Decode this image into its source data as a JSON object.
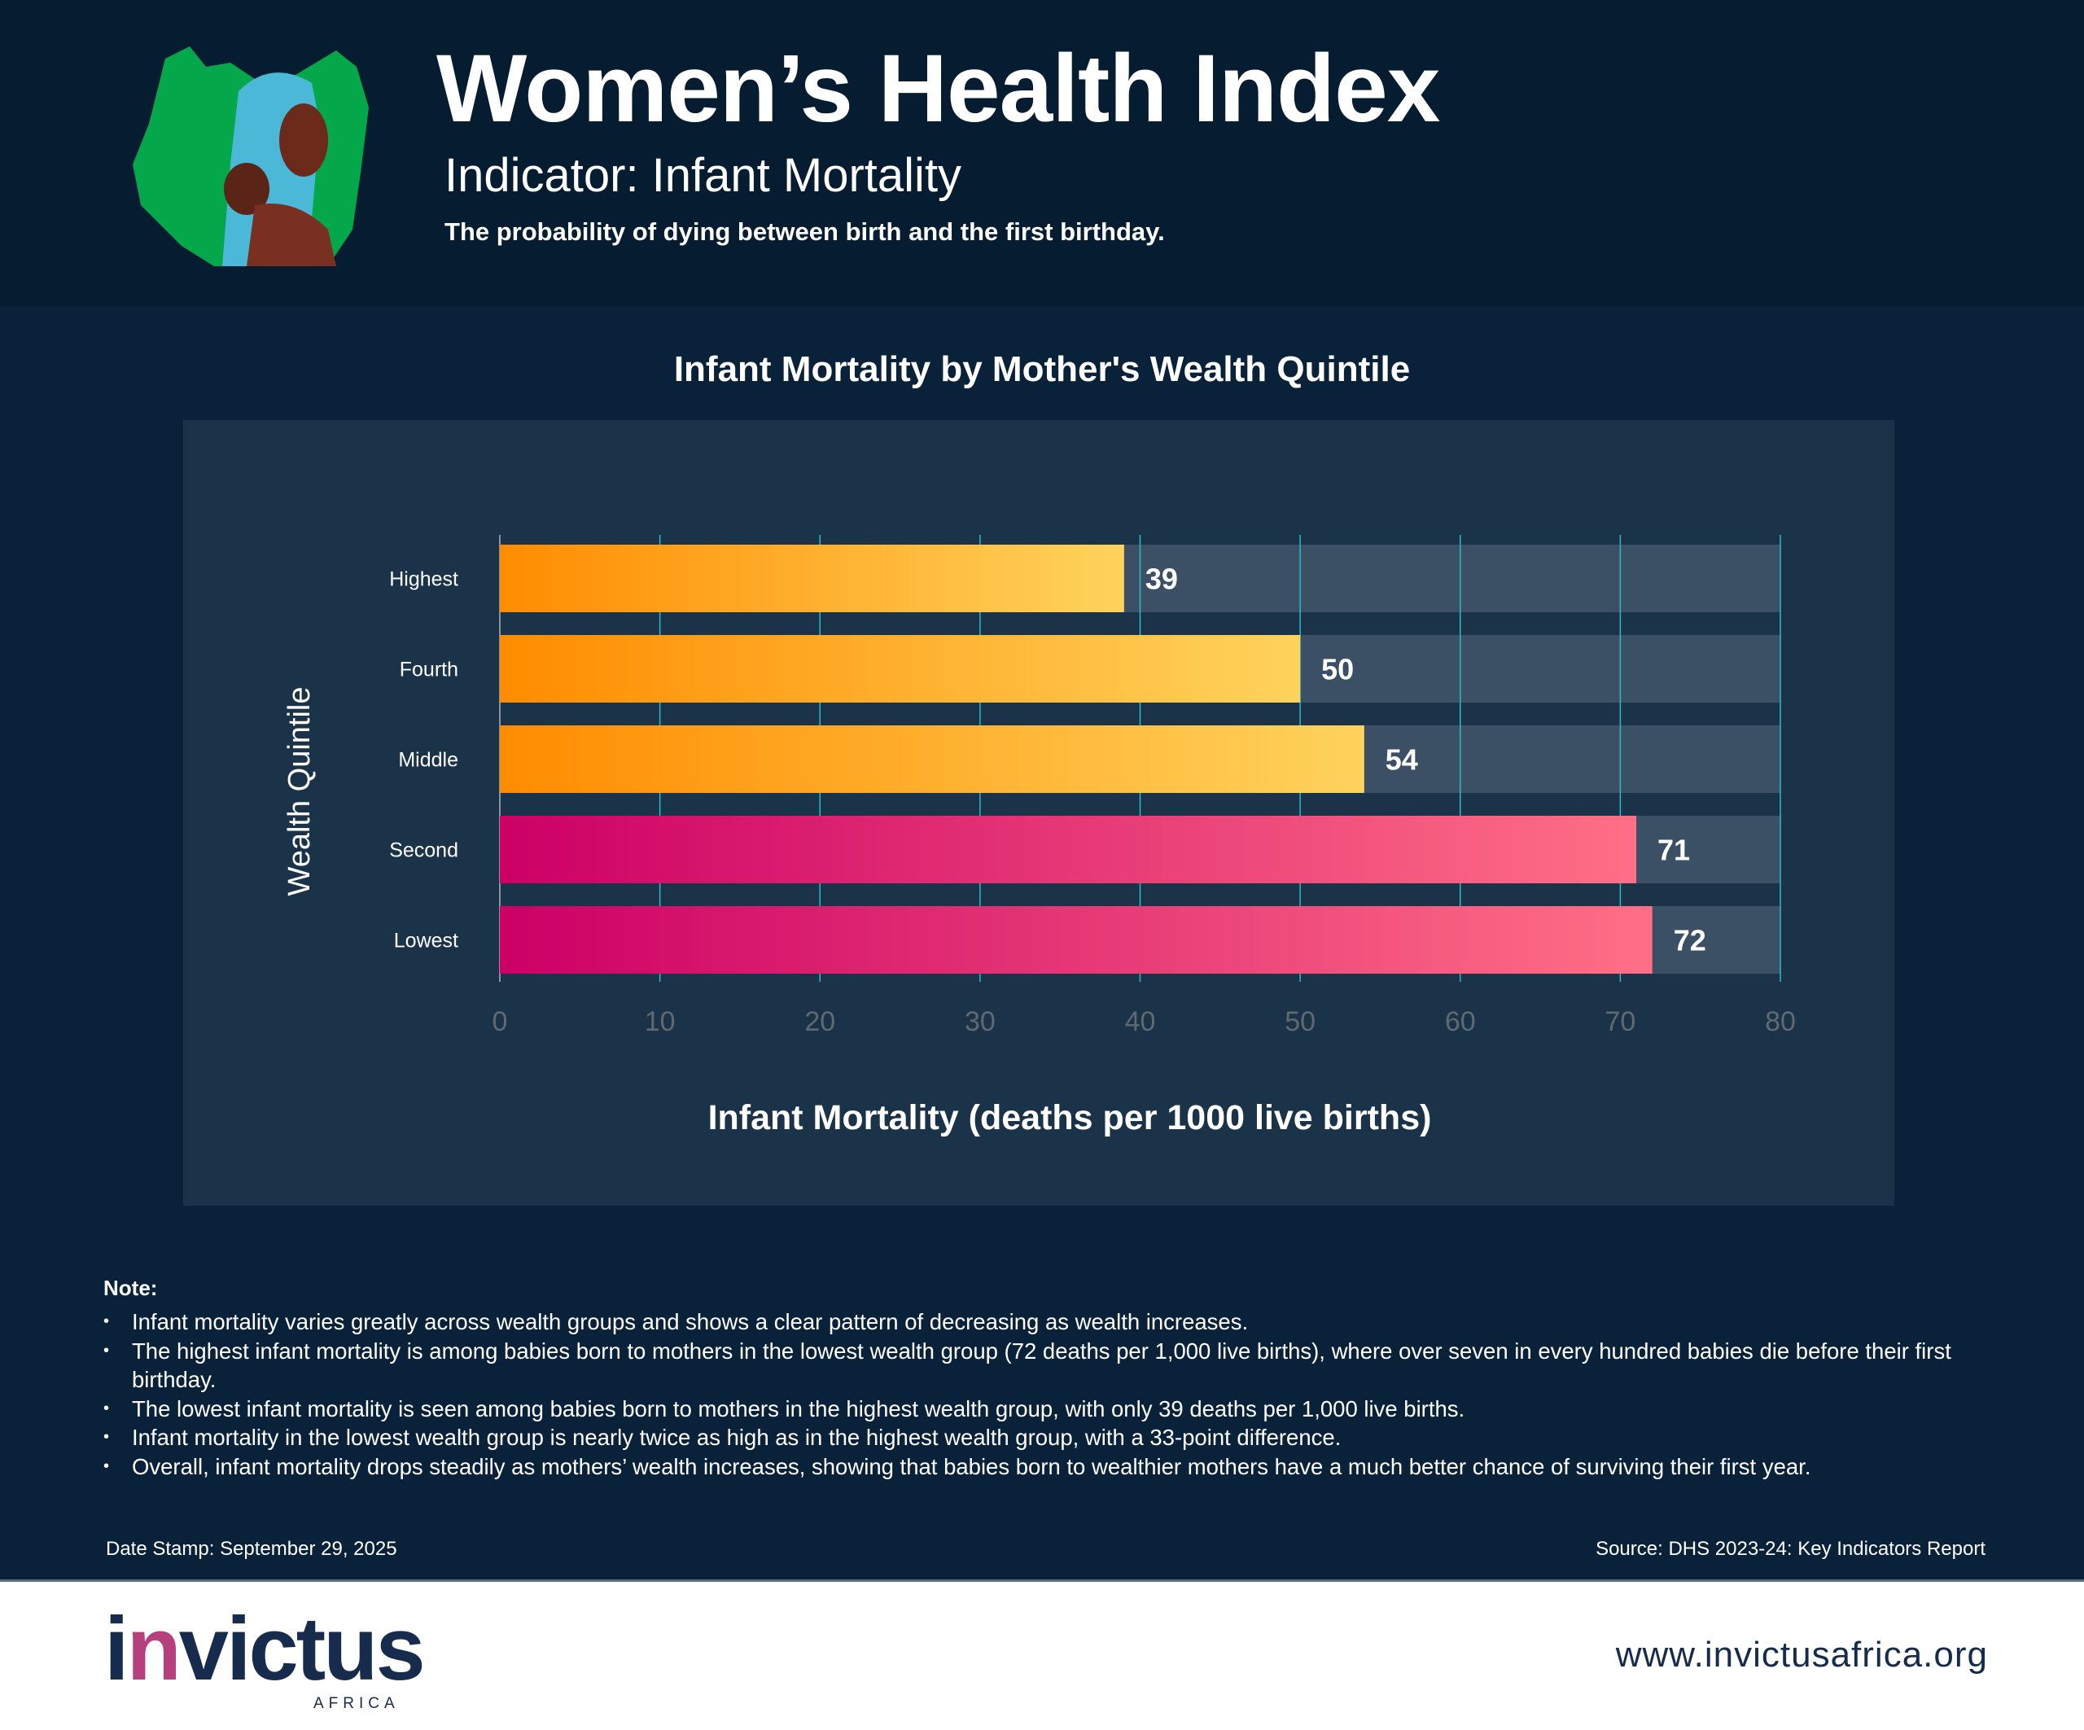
{
  "header": {
    "title": "Women’s Health Index",
    "subtitle": "Indicator: Infant Mortality",
    "description": "The probability of dying between birth and the first birthday."
  },
  "chart_data": {
    "type": "bar",
    "orientation": "horizontal",
    "title": "Infant Mortality by Mother's Wealth Quintile",
    "xlabel": "Infant Mortality (deaths per 1000 live births)",
    "ylabel": "Wealth Quintile",
    "categories": [
      "Highest",
      "Fourth",
      "Middle",
      "Second",
      "Lowest"
    ],
    "values": [
      39,
      50,
      54,
      71,
      72
    ],
    "value_labels": [
      "39",
      "50",
      "54",
      "71",
      "72"
    ],
    "xlim": [
      0,
      80
    ],
    "xticks": [
      "0",
      "10",
      "20",
      "30",
      "40",
      "50",
      "60",
      "70",
      "80"
    ],
    "grid": true,
    "colors": {
      "orange_gradient": [
        "#ff8c00",
        "#ffd35c"
      ],
      "pink_gradient": [
        "#cc0066",
        "#ff6f86"
      ],
      "track": "#3b5064",
      "grid": "#2fb8c8"
    },
    "bar_color_group": [
      "orange",
      "orange",
      "orange",
      "pink",
      "pink"
    ]
  },
  "notes": {
    "heading": "Note:",
    "items": [
      "Infant mortality varies greatly across wealth groups and shows a clear pattern of decreasing as wealth increases.",
      "The highest infant mortality is among babies born to mothers in the lowest wealth group (72 deaths per 1,000 live births), where over seven in every hundred babies die before their first birthday.",
      "The lowest infant mortality is seen among babies born to mothers in the highest wealth group, with only 39 deaths per 1,000 live births.",
      "Infant mortality in the lowest wealth group is nearly twice as high as in the highest wealth group, with a 33-point difference.",
      "Overall, infant mortality drops steadily as mothers’ wealth increases, showing that babies born to wealthier mothers have a much better chance of surviving their first year."
    ]
  },
  "meta": {
    "date_stamp": "Date Stamp: September 29, 2025",
    "source": "Source: DHS 2023-24: Key Indicators Report"
  },
  "footer": {
    "logo_text": "invictus",
    "logo_sub": "AFRICA",
    "url": "www.invictusafrica.org"
  }
}
